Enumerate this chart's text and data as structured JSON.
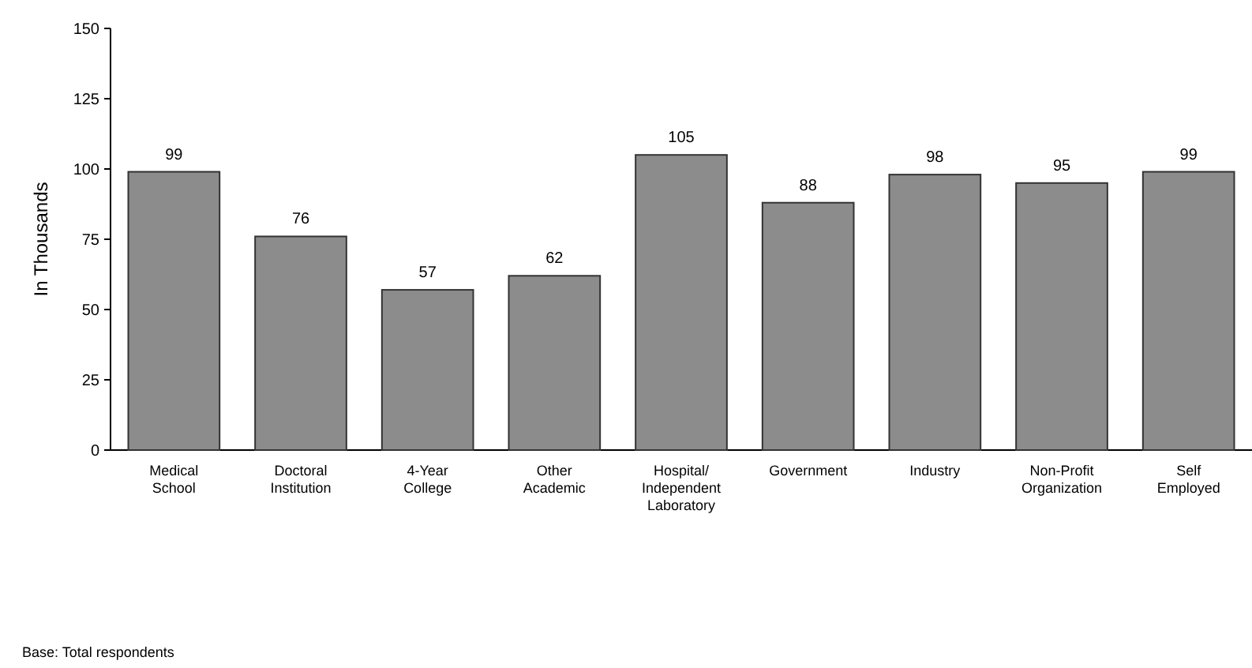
{
  "chart_data": {
    "type": "bar",
    "ylabel": "In Thousands",
    "categories": [
      "Medical\nSchool",
      "Doctoral\nInstitution",
      "4-Year\nCollege",
      "Other\nAcademic",
      "Hospital/\nIndependent\nLaboratory",
      "Government",
      "Industry",
      "Non-Profit\nOrganization",
      "Self\nEmployed"
    ],
    "values": [
      99,
      76,
      57,
      62,
      105,
      88,
      98,
      95,
      99
    ],
    "color": "#8c8c8c",
    "data_labels": true,
    "ylim": [
      0,
      150
    ],
    "yticks": [
      0,
      25,
      50,
      75,
      100,
      125,
      150
    ],
    "grid": false,
    "annotations": [
      "Base:  Total respondents"
    ]
  }
}
